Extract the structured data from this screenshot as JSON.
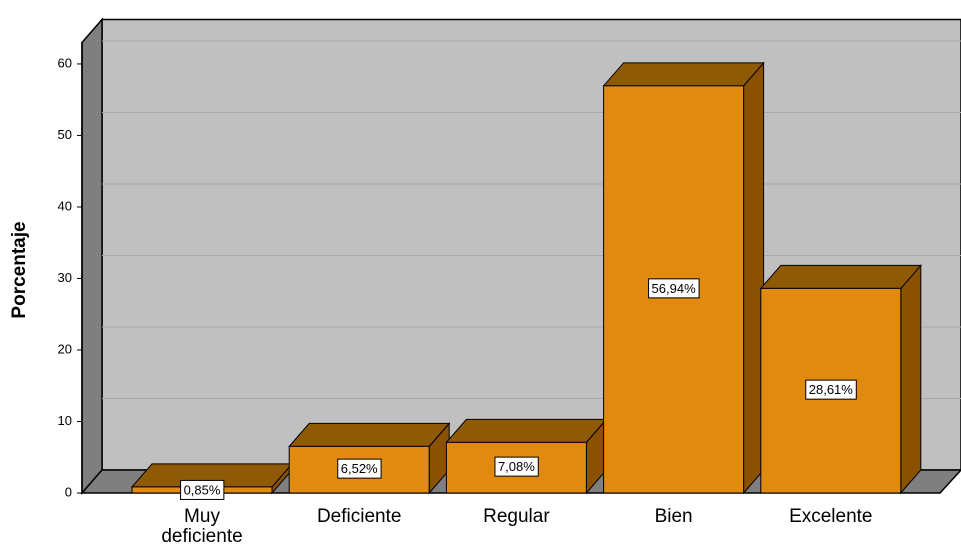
{
  "chart_data": {
    "type": "bar3d",
    "ylabel": "Porcentaje",
    "categories": [
      "Muy deficiente",
      "Deficiente",
      "Regular",
      "Bien",
      "Excelente"
    ],
    "values": [
      0.85,
      6.52,
      7.08,
      56.94,
      28.61
    ],
    "value_labels": [
      "0,85%",
      "6,52%",
      "7,08%",
      "56,94%",
      "28,61%"
    ],
    "color": "#e08a10",
    "ylim": [
      0,
      63
    ],
    "yticks": [
      0,
      10,
      20,
      30,
      40,
      50,
      60
    ],
    "grid": true
  }
}
